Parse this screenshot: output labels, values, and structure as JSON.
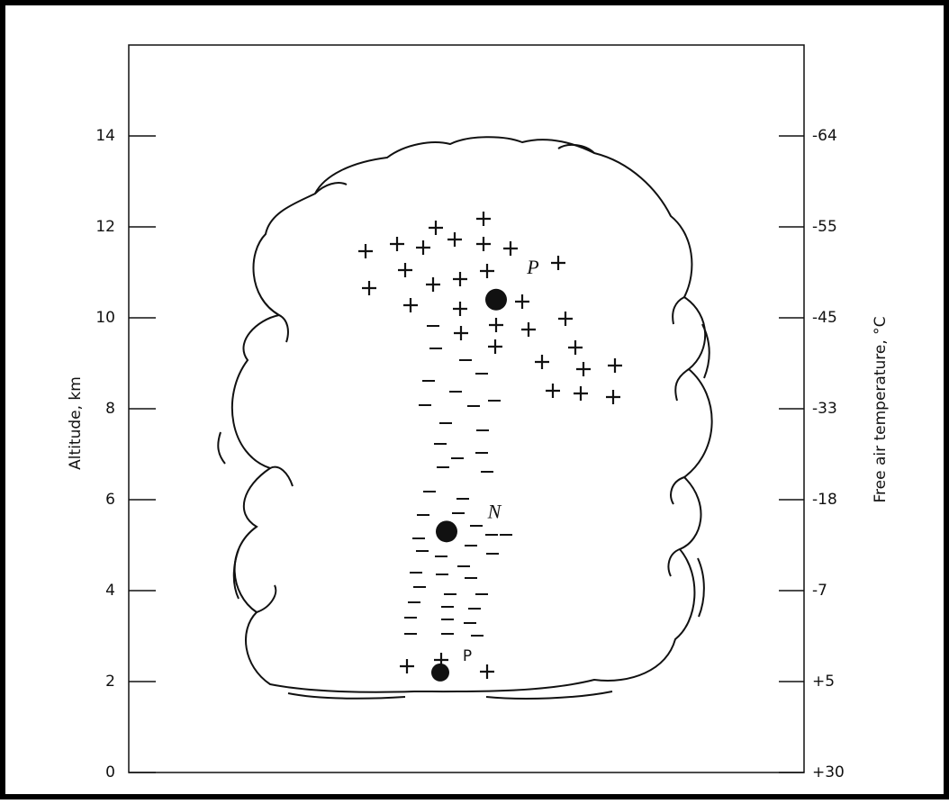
{
  "axes": {
    "y_label": "Altitude, km",
    "y2_label": "Free air temperature, °C",
    "ylim": [
      0,
      16
    ],
    "yticks": [
      0,
      2,
      4,
      6,
      8,
      10,
      12,
      14
    ],
    "y2ticks": [
      {
        "altitude": 14,
        "label": "-64"
      },
      {
        "altitude": 12,
        "label": "-55"
      },
      {
        "altitude": 10,
        "label": "-45"
      },
      {
        "altitude": 8,
        "label": "-33"
      },
      {
        "altitude": 6,
        "label": "-18"
      },
      {
        "altitude": 4,
        "label": "-7"
      },
      {
        "altitude": 2,
        "label": "+5"
      },
      {
        "altitude": 0,
        "label": "+30"
      }
    ]
  },
  "charge_centers": [
    {
      "label": "P",
      "altitude": 10.4
    },
    {
      "label": "N",
      "altitude": 5.3
    },
    {
      "label": "P",
      "altitude": 2.2
    }
  ]
}
